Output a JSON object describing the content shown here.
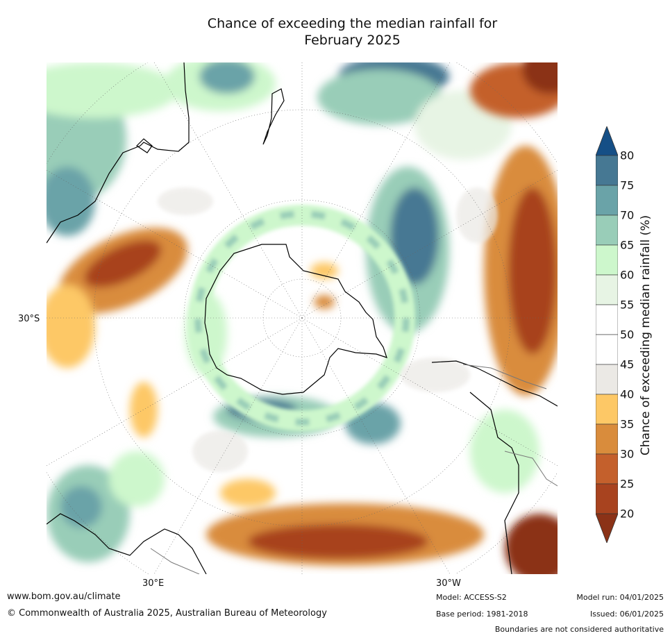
{
  "title_line1": "Chance of exceeding the median rainfall for",
  "title_line2": "February 2025",
  "labels": {
    "lat": "30°S",
    "lon_left": "30°E",
    "lon_right": "30°W"
  },
  "colorbar": {
    "label": "Chance of exceeding median rainfall (%)",
    "ticks": [
      "20",
      "25",
      "30",
      "35",
      "40",
      "45",
      "50",
      "55",
      "60",
      "65",
      "70",
      "75",
      "80"
    ],
    "colors": [
      "#8b3217",
      "#a8431f",
      "#c4602c",
      "#d98c3c",
      "#fdc866",
      "#ebe9e5",
      "#ffffff",
      "#ffffff",
      "#e7f4e4",
      "#cdf7cc",
      "#99cdb8",
      "#6aa3a8",
      "#467893",
      "#154f86"
    ]
  },
  "footer": {
    "url": "www.bom.gov.au/climate",
    "copyright": "© Commonwealth of Australia 2025, Australian Bureau of Meteorology",
    "model": "Model: ACCESS-S2",
    "base_period": "Base period: 1981-2018",
    "model_run": "Model run: 04/01/2025",
    "issued": "Issued: 06/01/2025",
    "disclaimer": "Boundaries are not considered authoritative"
  }
}
